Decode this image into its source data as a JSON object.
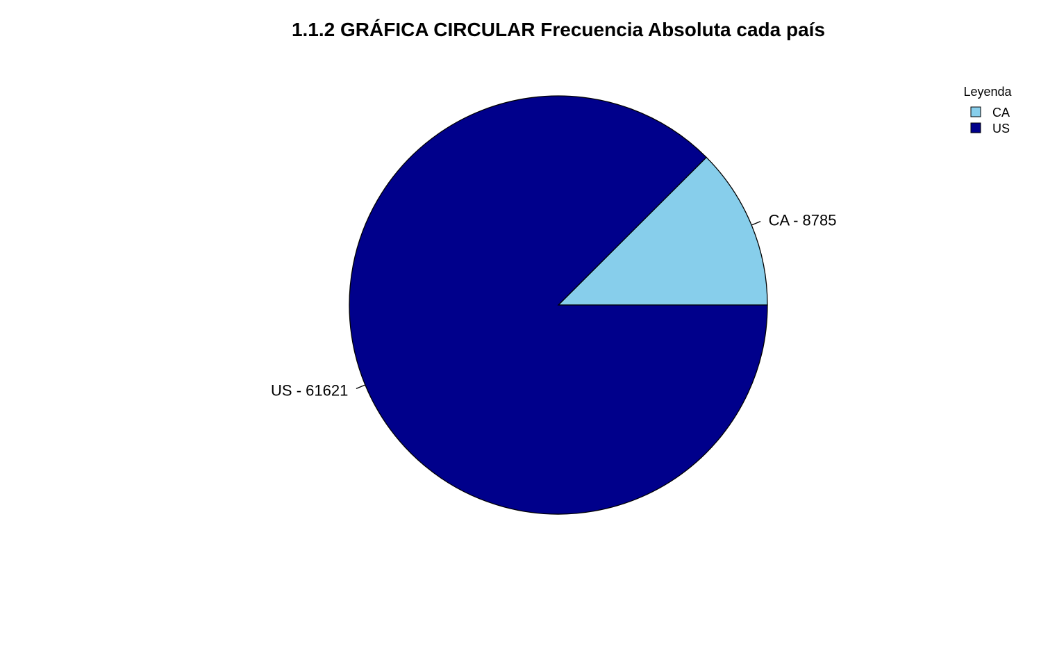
{
  "chart_data": {
    "type": "pie",
    "title": "1.1.2 GRÁFICA CIRCULAR Frecuencia Absoluta cada país",
    "slices": [
      {
        "category": "CA",
        "value": 8785,
        "label": "CA - 8785",
        "color": "#87CEEB"
      },
      {
        "category": "US",
        "value": 61621,
        "label": "US - 61621",
        "color": "#00008B"
      }
    ],
    "start_angle_deg": 0,
    "direction": "counterclockwise",
    "legend": {
      "title": "Leyenda",
      "position": "top-right",
      "entries": [
        {
          "label": "CA",
          "color": "#87CEEB"
        },
        {
          "label": "US",
          "color": "#00008B"
        }
      ]
    }
  }
}
